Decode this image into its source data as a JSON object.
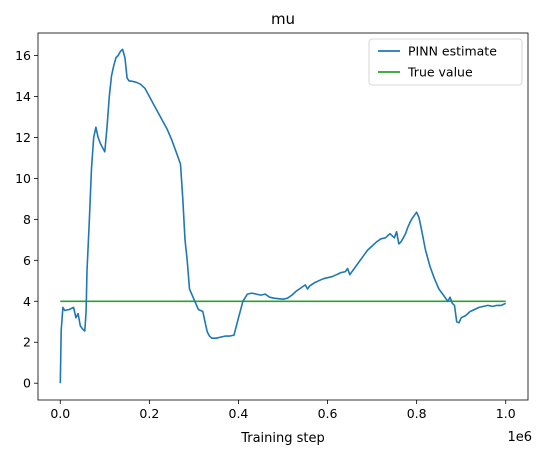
{
  "chart_data": {
    "type": "line",
    "title": "mu",
    "xlabel": "Training step",
    "ylabel": "",
    "x_offset_label": "1e6",
    "xlim": [
      -0.05,
      1.05
    ],
    "ylim": [
      -0.82,
      17.1
    ],
    "xticks": [
      0.0,
      0.2,
      0.4,
      0.6,
      0.8,
      1.0
    ],
    "xtick_labels": [
      "0.0",
      "0.2",
      "0.4",
      "0.6",
      "0.8",
      "1.0"
    ],
    "yticks": [
      0,
      2,
      4,
      6,
      8,
      10,
      12,
      14,
      16
    ],
    "ytick_labels": [
      "0",
      "2",
      "4",
      "6",
      "8",
      "10",
      "12",
      "14",
      "16"
    ],
    "grid": false,
    "legend_position": "top-right",
    "series": [
      {
        "name": "PINN estimate",
        "color": "#1f77b4",
        "x": [
          0.0,
          0.002,
          0.006,
          0.01,
          0.02,
          0.03,
          0.035,
          0.04,
          0.045,
          0.05,
          0.055,
          0.058,
          0.06,
          0.065,
          0.07,
          0.075,
          0.08,
          0.085,
          0.09,
          0.095,
          0.1,
          0.105,
          0.11,
          0.115,
          0.12,
          0.125,
          0.13,
          0.135,
          0.14,
          0.145,
          0.15,
          0.155,
          0.16,
          0.17,
          0.18,
          0.19,
          0.2,
          0.21,
          0.22,
          0.23,
          0.24,
          0.25,
          0.26,
          0.27,
          0.275,
          0.28,
          0.285,
          0.29,
          0.3,
          0.31,
          0.32,
          0.325,
          0.33,
          0.335,
          0.34,
          0.35,
          0.36,
          0.37,
          0.38,
          0.39,
          0.4,
          0.41,
          0.42,
          0.43,
          0.44,
          0.45,
          0.46,
          0.47,
          0.48,
          0.5,
          0.51,
          0.52,
          0.53,
          0.54,
          0.55,
          0.555,
          0.56,
          0.57,
          0.58,
          0.59,
          0.6,
          0.61,
          0.62,
          0.63,
          0.64,
          0.645,
          0.65,
          0.66,
          0.67,
          0.68,
          0.69,
          0.7,
          0.71,
          0.72,
          0.73,
          0.74,
          0.75,
          0.755,
          0.76,
          0.765,
          0.77,
          0.775,
          0.78,
          0.785,
          0.79,
          0.795,
          0.8,
          0.805,
          0.81,
          0.82,
          0.83,
          0.84,
          0.85,
          0.86,
          0.87,
          0.875,
          0.88,
          0.885,
          0.89,
          0.895,
          0.9,
          0.91,
          0.92,
          0.93,
          0.94,
          0.95,
          0.96,
          0.97,
          0.98,
          0.99,
          1.0
        ],
        "y": [
          0.0,
          2.6,
          3.7,
          3.55,
          3.6,
          3.7,
          3.2,
          3.4,
          2.8,
          2.65,
          2.55,
          3.5,
          5.5,
          7.8,
          10.5,
          12.0,
          12.5,
          12.0,
          11.7,
          11.5,
          11.3,
          12.5,
          14.0,
          15.0,
          15.5,
          15.9,
          16.0,
          16.2,
          16.3,
          15.9,
          14.9,
          14.75,
          14.75,
          14.7,
          14.6,
          14.4,
          14.0,
          13.6,
          13.2,
          12.8,
          12.4,
          11.9,
          11.3,
          10.7,
          9.0,
          7.0,
          6.0,
          4.6,
          4.1,
          3.6,
          3.5,
          3.0,
          2.5,
          2.3,
          2.2,
          2.2,
          2.25,
          2.3,
          2.3,
          2.35,
          3.2,
          4.0,
          4.35,
          4.4,
          4.35,
          4.3,
          4.35,
          4.2,
          4.15,
          4.1,
          4.15,
          4.3,
          4.5,
          4.65,
          4.8,
          4.6,
          4.75,
          4.9,
          5.0,
          5.1,
          5.15,
          5.2,
          5.3,
          5.4,
          5.45,
          5.6,
          5.3,
          5.6,
          5.9,
          6.2,
          6.5,
          6.7,
          6.9,
          7.05,
          7.1,
          7.3,
          7.1,
          7.4,
          6.8,
          6.9,
          7.1,
          7.3,
          7.6,
          7.85,
          8.05,
          8.2,
          8.35,
          8.1,
          7.6,
          6.5,
          5.7,
          5.1,
          4.6,
          4.3,
          4.0,
          4.2,
          3.9,
          3.8,
          3.0,
          2.95,
          3.2,
          3.3,
          3.5,
          3.6,
          3.7,
          3.75,
          3.8,
          3.75,
          3.8,
          3.8,
          3.9
        ]
      },
      {
        "name": "True value",
        "color": "#2ca02c",
        "x": [
          0.0,
          1.0
        ],
        "y": [
          4.0,
          4.0
        ]
      }
    ]
  }
}
